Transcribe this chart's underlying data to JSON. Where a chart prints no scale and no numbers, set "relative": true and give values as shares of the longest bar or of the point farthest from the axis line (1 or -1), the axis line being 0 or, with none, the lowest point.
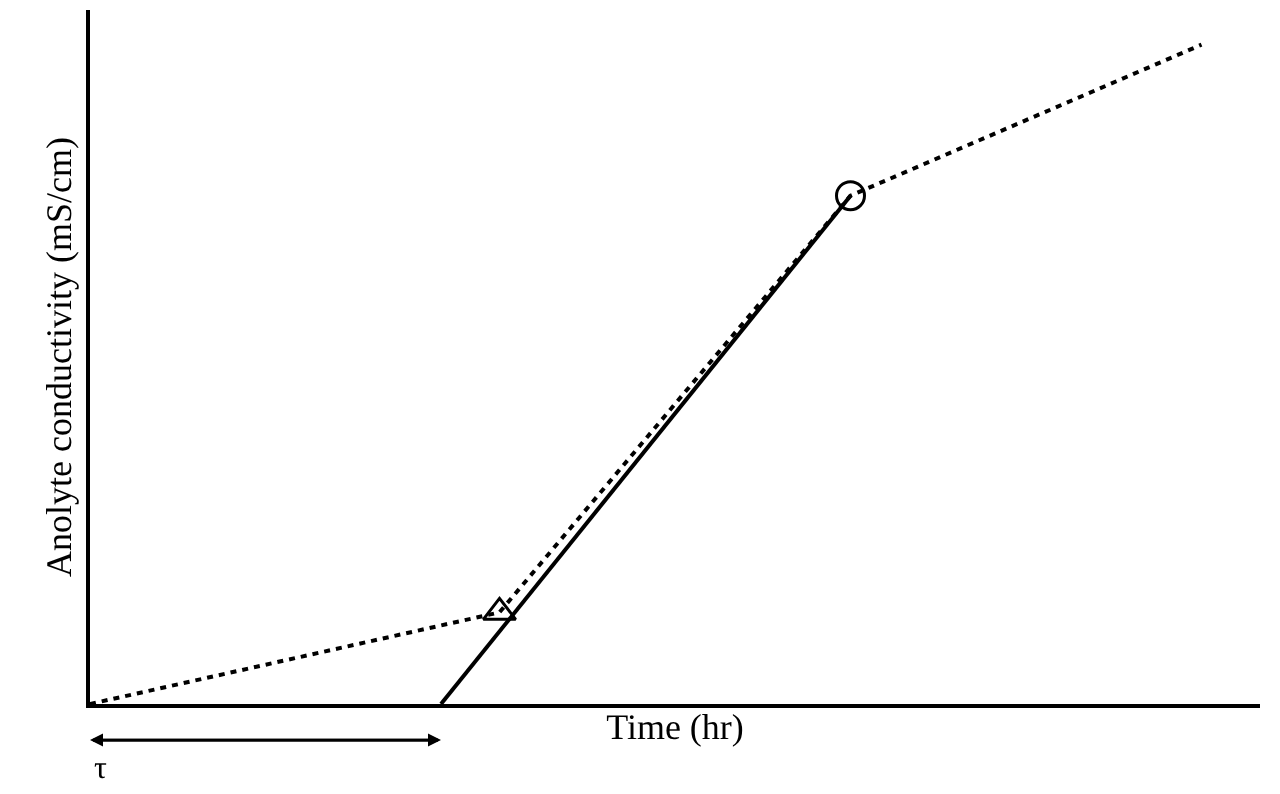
{
  "chart_data": {
    "type": "line",
    "relative": true,
    "ylabel": "Anolyte conductivity (mS/cm)",
    "xlabel": "Time (hr)",
    "annotations": [
      "τ"
    ],
    "categories": [
      null,
      null,
      null,
      null,
      null,
      null,
      null,
      null,
      null,
      null,
      null,
      null,
      null,
      null,
      null,
      null,
      null,
      null,
      null,
      null,
      null
    ],
    "series": [
      {
        "type": "line",
        "color": "#000000",
        "line_style": "dotted",
        "marker": "none",
        "values": [
          0,
          null,
          null,
          null,
          null,
          null,
          null,
          0.139,
          null,
          null,
          null,
          null,
          null,
          0.771,
          null,
          null,
          null,
          null,
          null,
          1,
          null
        ]
      },
      {
        "type": "line",
        "color": "#000000",
        "line_style": "solid",
        "marker": "none",
        "values": [
          null,
          null,
          null,
          null,
          null,
          null,
          0,
          null,
          null,
          null,
          null,
          null,
          null,
          0.771,
          null,
          null,
          null,
          null,
          null,
          null,
          null
        ]
      },
      {
        "type": "line",
        "color": "#000000",
        "marker": "triangle",
        "values": [
          null,
          null,
          null,
          null,
          null,
          null,
          null,
          0.139,
          null,
          null,
          null,
          null,
          null,
          null,
          null,
          null,
          null,
          null,
          null,
          null,
          null
        ]
      },
      {
        "type": "line",
        "color": "#000000",
        "marker": "circle",
        "values": [
          null,
          null,
          null,
          null,
          null,
          null,
          null,
          null,
          null,
          null,
          null,
          null,
          null,
          0.771,
          null,
          null,
          null,
          null,
          null,
          null,
          null
        ]
      }
    ]
  }
}
